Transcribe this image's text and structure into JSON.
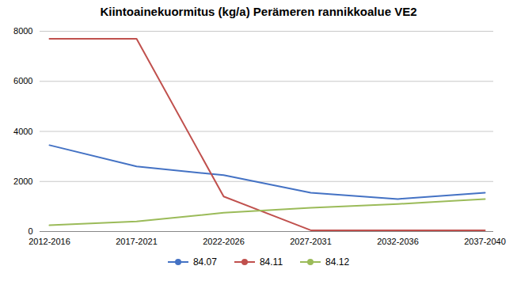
{
  "chart_data": {
    "type": "line",
    "title": "Kiintoainekuormitus (kg/a) Perämeren rannikkoalue VE2",
    "categories": [
      "2012-2016",
      "2017-2021",
      "2022-2026",
      "2027-2031",
      "2032-2036",
      "2037-2040"
    ],
    "series": [
      {
        "name": "84.07",
        "color": "#4472C4",
        "values": [
          3450,
          2600,
          2250,
          1550,
          1300,
          1550
        ]
      },
      {
        "name": "84.11",
        "color": "#C0504D",
        "values": [
          7700,
          7700,
          1400,
          50,
          50,
          50
        ]
      },
      {
        "name": "84.12",
        "color": "#9BBB59",
        "values": [
          250,
          400,
          750,
          950,
          1100,
          1300
        ]
      }
    ],
    "ylim": [
      0,
      8000
    ],
    "yticks": [
      0,
      2000,
      4000,
      6000,
      8000
    ],
    "grid": true,
    "legend": "bottom"
  }
}
